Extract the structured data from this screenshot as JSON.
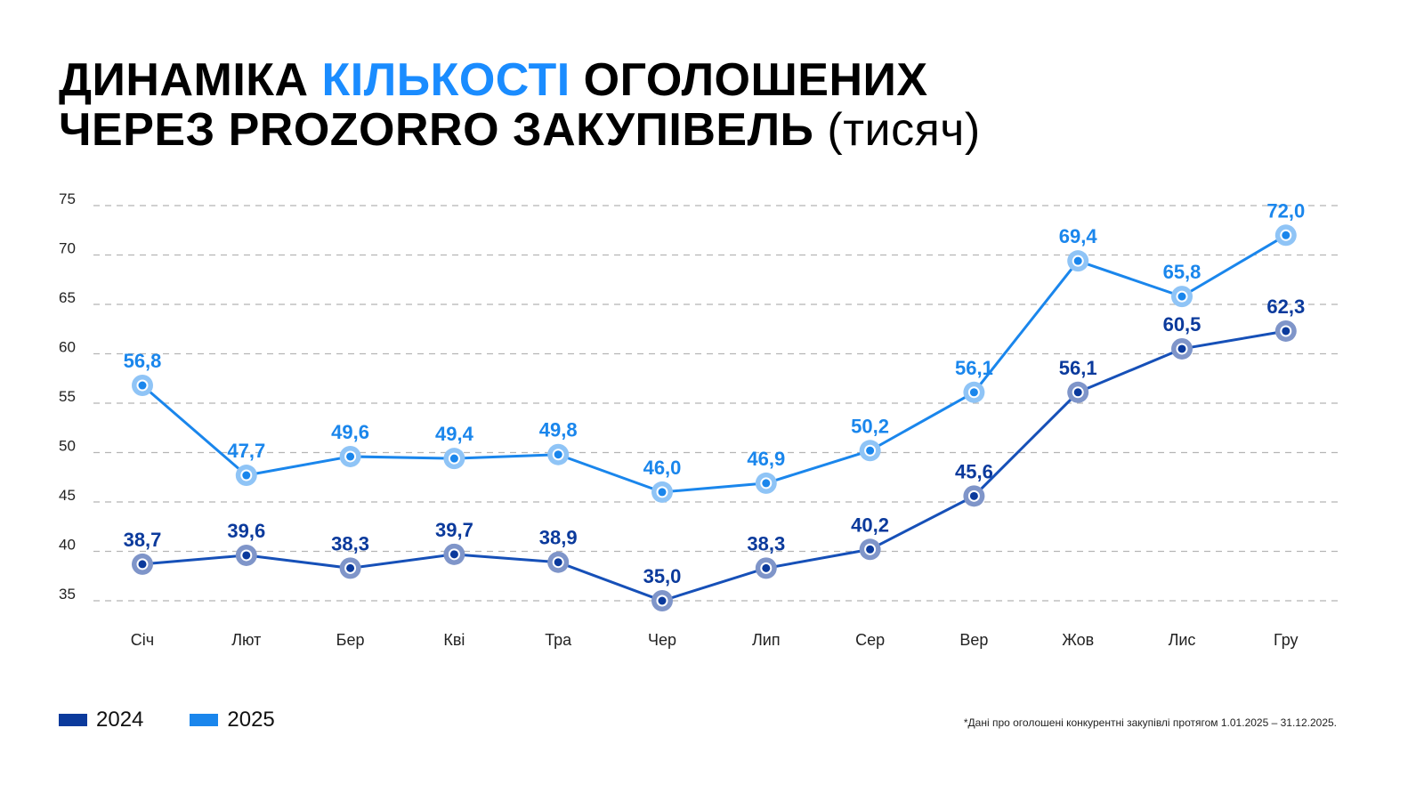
{
  "title": {
    "part1": "ДИНАМІКА ",
    "accent": "КІЛЬКОСТІ",
    "part2": " ОГОЛОШЕНИХ",
    "line2": "ЧЕРЕЗ PROZORRO ЗАКУПІВЕЛЬ ",
    "unit": "(тисяч)"
  },
  "footnote": "*Дані про оголошені конкурентні закупівлі протягом 1.01.2025 – 31.12.2025.",
  "chart_data": {
    "type": "line",
    "categories": [
      "Січ",
      "Лют",
      "Бер",
      "Кві",
      "Тра",
      "Чер",
      "Лип",
      "Сер",
      "Вер",
      "Жов",
      "Лис",
      "Гру"
    ],
    "yticks": [
      35,
      40,
      45,
      50,
      55,
      60,
      65,
      70,
      75
    ],
    "ylim": [
      35,
      75
    ],
    "grid": true,
    "legend_position": "bottom-left",
    "series": [
      {
        "name": "2024",
        "color": "#0b3a9c",
        "line": "#1650b8",
        "halo": "#7f95c9",
        "labels": [
          "38,7",
          "39,6",
          "38,3",
          "39,7",
          "38,9",
          "35,0",
          "38,3",
          "40,2",
          "45,6",
          "56,1",
          "60,5",
          "62,3"
        ],
        "values": [
          38.7,
          39.6,
          38.3,
          39.7,
          38.9,
          35.0,
          38.3,
          40.2,
          45.6,
          56.1,
          60.5,
          62.3
        ]
      },
      {
        "name": "2025",
        "color": "#1a86ec",
        "line": "#1a86ec",
        "halo": "#8fc4f6",
        "labels": [
          "56,8",
          "47,7",
          "49,6",
          "49,4",
          "49,8",
          "46,0",
          "46,9",
          "50,2",
          "56,1",
          "69,4",
          "65,8",
          "72,0"
        ],
        "values": [
          56.8,
          47.7,
          49.6,
          49.4,
          49.8,
          46.0,
          46.9,
          50.2,
          56.1,
          69.4,
          65.8,
          72.0
        ]
      }
    ]
  }
}
